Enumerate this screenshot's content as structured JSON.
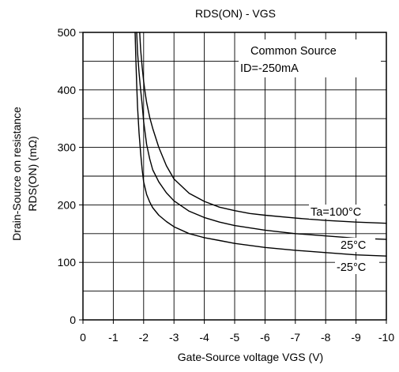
{
  "chart_data": {
    "type": "line",
    "title": "RDS(ON) - VGS",
    "xlabel": "Gate-Source voltage  VGS (V)",
    "ylabel_line1": "Drain-Source on resistance",
    "ylabel_line2": "RDS(ON) (mΩ)",
    "xlim": [
      0,
      -10
    ],
    "ylim": [
      0,
      500
    ],
    "x_ticks": [
      0,
      -1,
      -2,
      -3,
      -4,
      -5,
      -6,
      -7,
      -8,
      -9,
      -10
    ],
    "y_ticks": [
      0,
      100,
      200,
      300,
      400,
      500
    ],
    "x_minor_step": 1,
    "y_minor_step": 50,
    "grid": true,
    "annotation": {
      "line1": "Common Source",
      "line2": "ID=-250mA"
    },
    "series": [
      {
        "name": "Ta=100°C",
        "x": [
          -1.87,
          -1.9,
          -1.95,
          -2.0,
          -2.05,
          -2.1,
          -2.2,
          -2.3,
          -2.5,
          -2.75,
          -3.0,
          -3.5,
          -4.0,
          -4.5,
          -5.0,
          -5.5,
          -6.0,
          -7.0,
          -8.0,
          -9.0,
          -10.0
        ],
        "values": [
          500,
          470,
          440,
          415,
          395,
          378,
          352,
          333,
          300,
          268,
          245,
          220,
          206,
          196,
          190,
          185,
          182,
          177,
          173,
          170,
          168
        ]
      },
      {
        "name": "25°C",
        "x": [
          -1.77,
          -1.8,
          -1.85,
          -1.9,
          -1.95,
          -2.0,
          -2.1,
          -2.2,
          -2.3,
          -2.5,
          -2.75,
          -3.0,
          -3.5,
          -4.0,
          -4.5,
          -5.0,
          -6.0,
          -7.0,
          -8.0,
          -9.0,
          -10.0
        ],
        "values": [
          500,
          465,
          430,
          400,
          375,
          345,
          305,
          280,
          261,
          240,
          221,
          207,
          189,
          178,
          170,
          164,
          156,
          150,
          146,
          142,
          140
        ]
      },
      {
        "name": "-25°C",
        "x": [
          -1.72,
          -1.74,
          -1.77,
          -1.8,
          -1.85,
          -1.9,
          -1.95,
          -2.0,
          -2.1,
          -2.2,
          -2.3,
          -2.5,
          -2.75,
          -3.0,
          -3.5,
          -4.0,
          -4.5,
          -5.0,
          -6.0,
          -7.0,
          -8.0,
          -9.0,
          -10.0
        ],
        "values": [
          500,
          460,
          410,
          370,
          325,
          290,
          262,
          240,
          218,
          205,
          195,
          182,
          171,
          162,
          150,
          143,
          138,
          133,
          126,
          121,
          117,
          113,
          111
        ]
      }
    ]
  }
}
